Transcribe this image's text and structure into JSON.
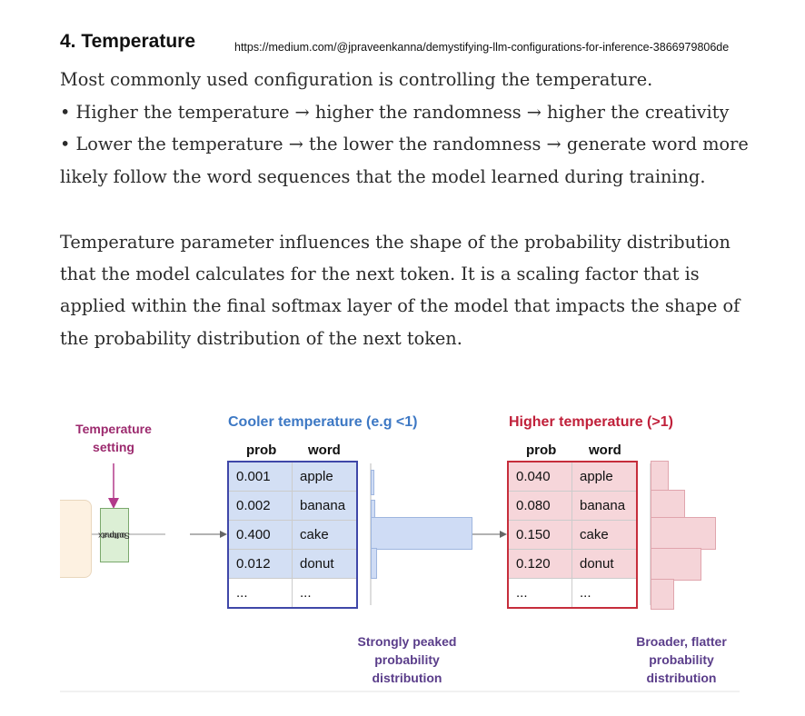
{
  "heading": "4. Temperature",
  "source_url": "https://medium.com/@jpraveenkanna/demystifying-llm-configurations-for-inference-3866979806de",
  "intro": {
    "line1": "Most commonly used configuration is controlling the temperature.",
    "line2": "• Higher the temperature → higher the randomness → higher the creativity",
    "line3": "• Lower the temperature → the lower the randomness → generate word more",
    "line4": "likely follow the word sequences that the model learned during training."
  },
  "paragraph2": {
    "line1": "Temperature parameter influences the shape of the probability distribution",
    "line2": "that the model calculates for the next token. It is a scaling factor that is",
    "line3": "applied within the final softmax layer of the model that impacts the shape of",
    "line4": "the probability distribution of the next token."
  },
  "figure": {
    "temp_setting": {
      "line1": "Temperature",
      "line2": "setting"
    },
    "softmax_label": {
      "line1": "Softmax",
      "line2": "output"
    },
    "cooler": {
      "header": "Cooler temperature (e.g <1)",
      "col_prob": "prob",
      "col_word": "word",
      "rows": [
        {
          "prob": "0.001",
          "word": "apple"
        },
        {
          "prob": "0.002",
          "word": "banana"
        },
        {
          "prob": "0.400",
          "word": "cake"
        },
        {
          "prob": "0.012",
          "word": "donut"
        },
        {
          "prob": "...",
          "word": "..."
        }
      ],
      "annotation": {
        "line1": "Strongly peaked",
        "line2": "probability",
        "line3": "distribution"
      }
    },
    "higher": {
      "header": "Higher temperature (>1)",
      "col_prob": "prob",
      "col_word": "word",
      "rows": [
        {
          "prob": "0.040",
          "word": "apple"
        },
        {
          "prob": "0.080",
          "word": "banana"
        },
        {
          "prob": "0.150",
          "word": "cake"
        },
        {
          "prob": "0.120",
          "word": "donut"
        },
        {
          "prob": "...",
          "word": "..."
        }
      ],
      "annotation": {
        "line1": "Broader, flatter",
        "line2": "probability",
        "line3": "distribution"
      }
    },
    "colors": {
      "cool": "#3d78c4",
      "hot": "#c0203a",
      "setting": "#9c2a6e"
    }
  }
}
